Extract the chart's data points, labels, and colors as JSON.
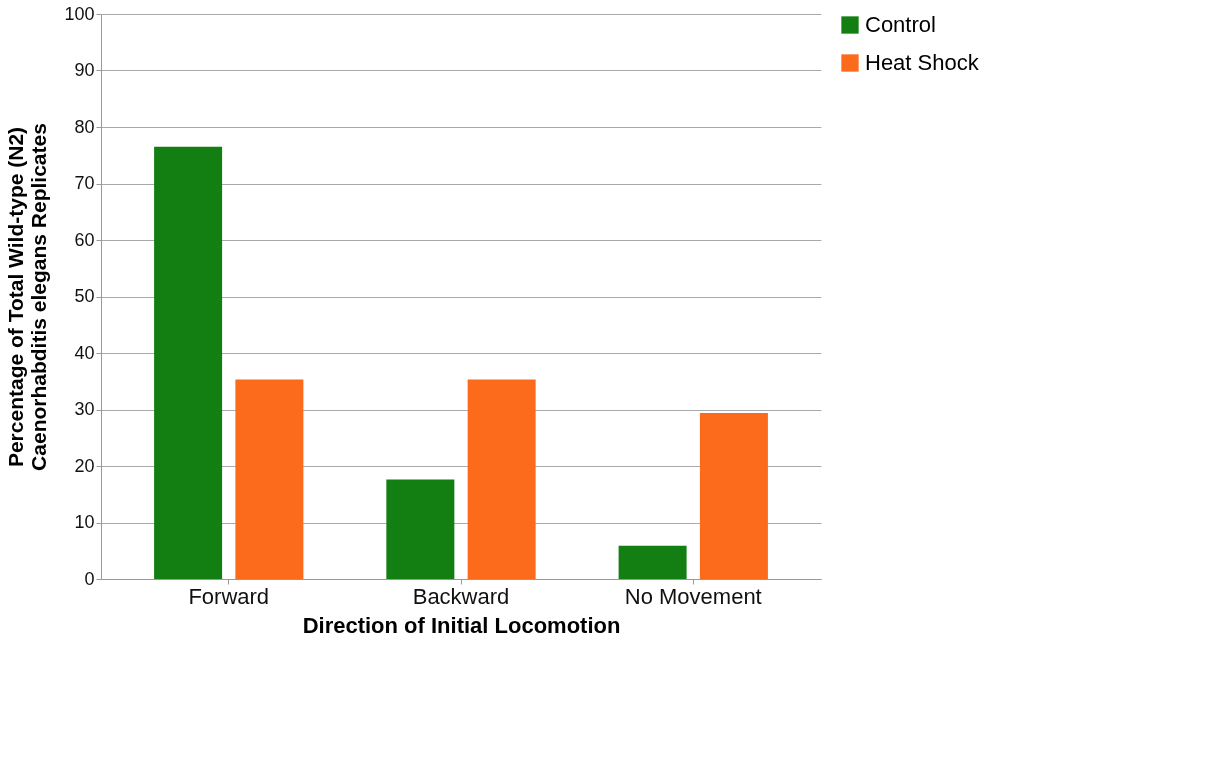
{
  "chart_data": {
    "type": "bar",
    "xlabel": "Direction of Initial Locomotion",
    "ylabel": "Percentage of Total Wild-type (N2)\nCaenorhabditis elegans Replicates",
    "categories": [
      "Forward",
      "Backward",
      "No Movement"
    ],
    "series": [
      {
        "name": "Control",
        "color": "#137f13",
        "values": [
          76.5,
          17.6,
          5.9
        ]
      },
      {
        "name": "Heat Shock",
        "color": "#fc6a1c",
        "values": [
          35.3,
          35.3,
          29.4
        ]
      }
    ],
    "ylim": [
      0,
      100
    ],
    "yticks": [
      0,
      10,
      20,
      30,
      40,
      50,
      60,
      70,
      80,
      90,
      100
    ],
    "grid": "y",
    "legend": "right"
  }
}
